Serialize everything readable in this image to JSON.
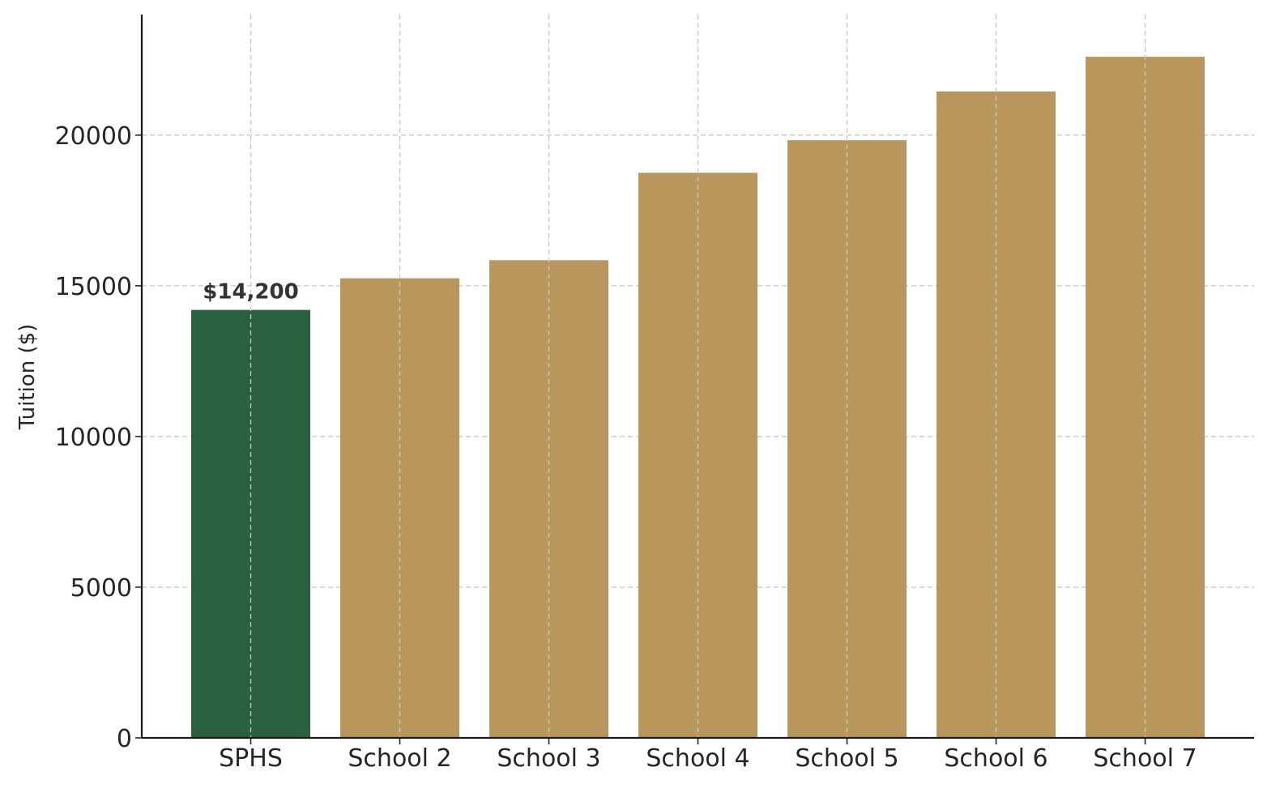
{
  "chart_data": {
    "type": "bar",
    "title": "",
    "xlabel": "",
    "ylabel": "Tuition ($)",
    "categories": [
      "SPHS",
      "School 2",
      "School 3",
      "School 4",
      "School 5",
      "School 6",
      "School 7"
    ],
    "values": [
      14200,
      15250,
      15850,
      18750,
      19830,
      21450,
      22600
    ],
    "ylim": [
      0,
      24000
    ],
    "yticks": [
      0,
      5000,
      10000,
      15000,
      20000
    ],
    "grid": true,
    "legend": "none",
    "colors": {
      "highlight": "#2a6040",
      "default": "#b8965c"
    },
    "highlight_index": 0,
    "annotations": [
      {
        "category": "SPHS",
        "text": "$14,200"
      }
    ]
  }
}
